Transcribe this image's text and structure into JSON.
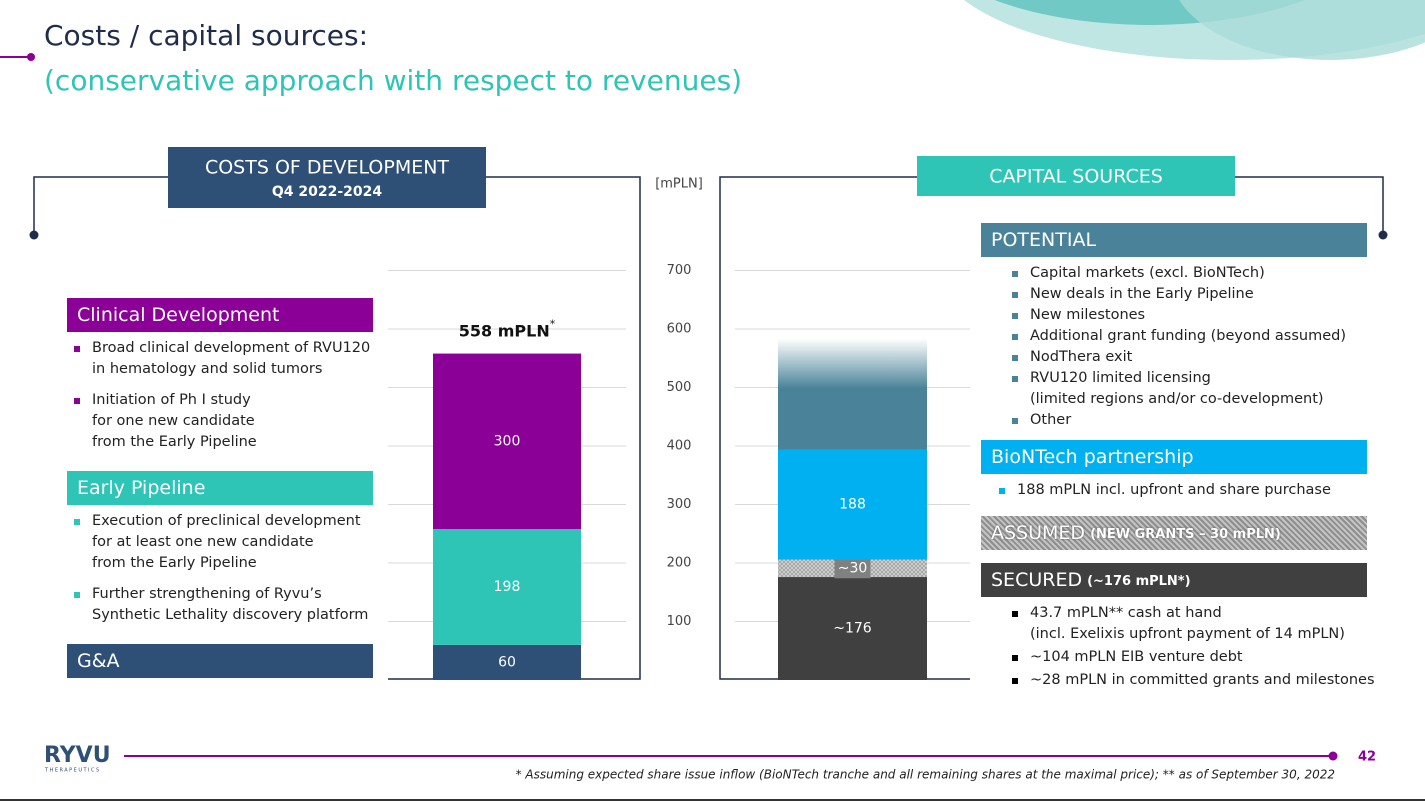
{
  "slide": {
    "title": "Costs / capital sources:",
    "subtitle": "(conservative approach with respect to revenues)",
    "footnote": "* Assuming expected share issue inflow (BioNTech tranche and all remaining shares at the maximal price); ** as of September 30, 2022",
    "page_number": "42",
    "logo": "RYVU",
    "logo_sub": "THERAPEUTICS"
  },
  "chart_data": [
    {
      "type": "bar",
      "title": "COSTS OF DEVELOPMENT",
      "subtitle": "Q4 2022-2024",
      "y_label": "[mPLN]",
      "total_label": "558 mPLN",
      "total_label_note": "*",
      "ylim": [
        0,
        800
      ],
      "yticks": [
        100,
        200,
        300,
        400,
        500,
        600,
        700
      ],
      "grid": true,
      "series": [
        {
          "name": "G&A",
          "color": "#2e5077",
          "values": [
            60
          ]
        },
        {
          "name": "Early Pipeline",
          "color": "#2ec4b6",
          "values": [
            198
          ],
          "bullets": [
            [
              "Execution of preclinical development",
              "for at least one new candidate",
              "from the Early Pipeline"
            ],
            [
              "Further strengthening of Ryvu’s",
              "Synthetic Lethality discovery platform"
            ]
          ]
        },
        {
          "name": "Clinical Development",
          "color": "#8b0096",
          "values": [
            300
          ],
          "bullets": [
            [
              "Broad clinical development of RVU120",
              "in hematology and solid tumors"
            ],
            [
              "Initiation of Ph I study",
              "for one new candidate",
              "from the Early Pipeline"
            ]
          ]
        }
      ]
    },
    {
      "type": "bar",
      "title": "CAPITAL SOURCES",
      "ylim": [
        0,
        800
      ],
      "grid": true,
      "series": [
        {
          "name": "SECURED",
          "note": "(~176 mPLN*)",
          "color": "#404040",
          "values": [
            176
          ],
          "value_labels": [
            "~176"
          ],
          "bullet_color": "#000000",
          "bullets": [
            [
              "43.7 mPLN** cash at hand",
              "(incl. Exelixis upfront payment of 14 mPLN)"
            ],
            [
              "~104 mPLN EIB venture debt"
            ],
            [
              "~28 mPLN in committed grants and milestones"
            ]
          ]
        },
        {
          "name": "ASSUMED",
          "note": "(NEW GRANTS – 30 mPLN)",
          "color": "#9a9a9a",
          "pattern": "hatch",
          "values": [
            30
          ],
          "value_labels": [
            "~30"
          ]
        },
        {
          "name": "BioNTech partnership",
          "color": "#00b0f0",
          "values": [
            188
          ],
          "bullets": [
            [
              "188 mPLN incl. upfront and share purchase"
            ]
          ]
        },
        {
          "name": "POTENTIAL",
          "color": "#4a8399",
          "pattern": "fade",
          "values": [
            190
          ],
          "value_labels": [
            null
          ],
          "bullets": [
            [
              "Capital markets (excl. BioNTech)"
            ],
            [
              "New deals in the Early Pipeline"
            ],
            [
              "New milestones"
            ],
            [
              "Additional grant funding (beyond assumed)"
            ],
            [
              "NodThera exit"
            ],
            [
              "RVU120 limited licensing",
              "(limited regions and/or co-development)"
            ],
            [
              "Other"
            ]
          ]
        }
      ]
    }
  ]
}
